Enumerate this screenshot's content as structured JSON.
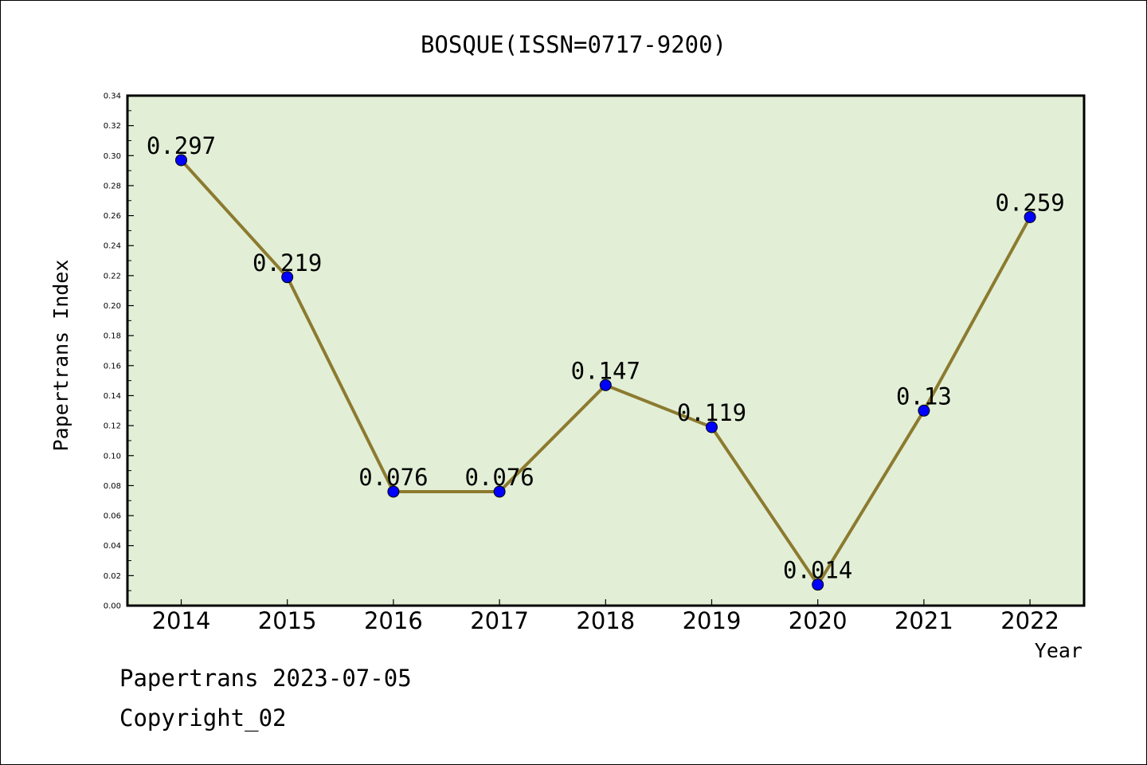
{
  "chart_data": {
    "type": "line",
    "title": "BOSQUE(ISSN=0717-9200)",
    "xlabel": "Year",
    "ylabel": "Papertrans Index",
    "categories": [
      "2014",
      "2015",
      "2016",
      "2017",
      "2018",
      "2019",
      "2020",
      "2021",
      "2022"
    ],
    "values": [
      0.297,
      0.219,
      0.076,
      0.076,
      0.147,
      0.119,
      0.014,
      0.13,
      0.259
    ],
    "data_labels": [
      "0.297",
      "0.219",
      "0.076",
      "0.076",
      "0.147",
      "0.119",
      "0.014",
      "0.13",
      "0.259"
    ],
    "ylim": [
      0,
      0.34
    ],
    "yticks": [
      "0.00",
      "0.02",
      "0.04",
      "0.06",
      "0.08",
      "0.10",
      "0.12",
      "0.14",
      "0.16",
      "0.18",
      "0.20",
      "0.22",
      "0.24",
      "0.26",
      "0.28",
      "0.30",
      "0.32",
      "0.34"
    ],
    "grid": false,
    "legend": "none",
    "colors": {
      "plot_background": "#e2efd6",
      "line": "#8c7a30",
      "marker": "#0000ff"
    }
  },
  "footer": {
    "date_line": "Papertrans 2023-07-05",
    "copyright": "Copyright_02"
  }
}
